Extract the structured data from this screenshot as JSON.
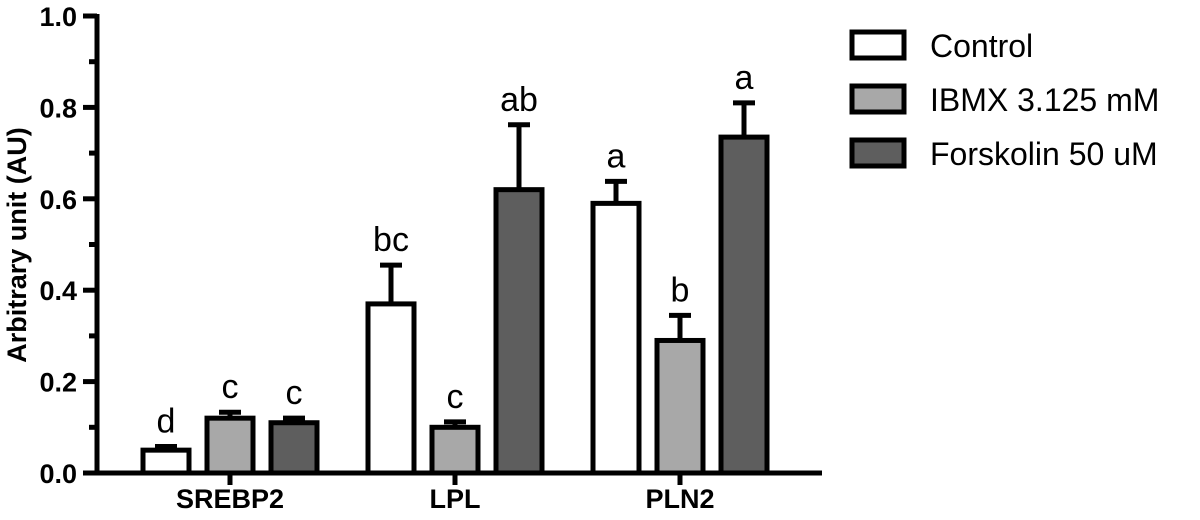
{
  "chart_data": {
    "type": "bar",
    "ylabel": "Arbitrary unit (AU)",
    "ylim": [
      0,
      1.0
    ],
    "yticks": [
      "0.0",
      "0.2",
      "0.4",
      "0.6",
      "0.8",
      "1.0"
    ],
    "categories": [
      "SREBP2",
      "LPL",
      "PLN2"
    ],
    "series": [
      {
        "name": "Control",
        "color": "#ffffff",
        "values": [
          0.05,
          0.37,
          0.59
        ],
        "errors": [
          0.008,
          0.085,
          0.048
        ],
        "labels": [
          "d",
          "bc",
          "a"
        ]
      },
      {
        "name": "IBMX 3.125 mM",
        "color": "#a8a8a8",
        "values": [
          0.12,
          0.1,
          0.29
        ],
        "errors": [
          0.013,
          0.012,
          0.055
        ],
        "labels": [
          "c",
          "c",
          "b"
        ]
      },
      {
        "name": "Forskolin 50 uM",
        "color": "#5e5e5e",
        "values": [
          0.11,
          0.62,
          0.735
        ],
        "errors": [
          0.01,
          0.142,
          0.075
        ],
        "labels": [
          "c",
          "ab",
          "a"
        ]
      }
    ],
    "legend_position": "top-right",
    "grid": false
  }
}
